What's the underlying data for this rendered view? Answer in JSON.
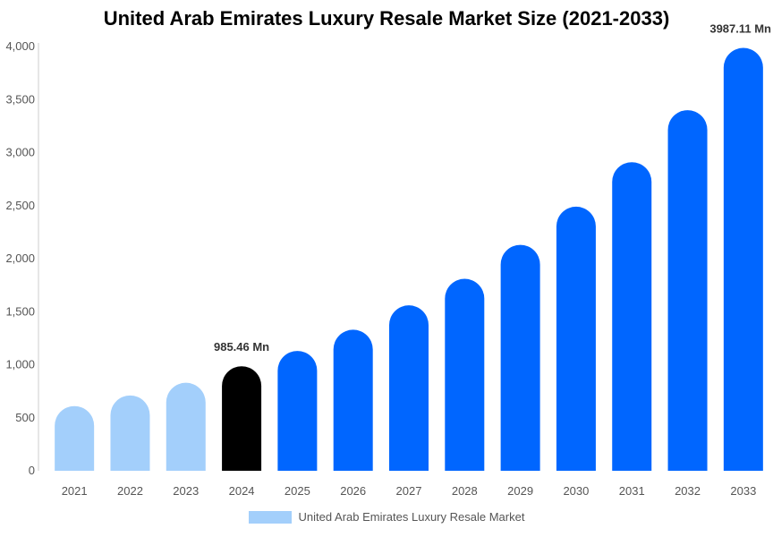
{
  "chart_data": {
    "type": "bar",
    "title": "United Arab Emirates Luxury Resale Market Size (2021-2033)",
    "xlabel": "",
    "ylabel": "",
    "categories": [
      "2021",
      "2022",
      "2023",
      "2024",
      "2025",
      "2026",
      "2027",
      "2028",
      "2029",
      "2030",
      "2031",
      "2032",
      "2033"
    ],
    "series": [
      {
        "name": "United Arab Emirates Luxury Resale Market",
        "values": [
          610,
          710,
          830,
          985.46,
          1130,
          1330,
          1560,
          1810,
          2130,
          2490,
          2910,
          3400,
          3987.11
        ]
      }
    ],
    "ylim": [
      0,
      4000
    ],
    "yticks": [
      0,
      500,
      1000,
      1500,
      2000,
      2500,
      3000,
      3500,
      4000
    ],
    "ytick_labels": [
      "0",
      "500",
      "1,000",
      "1,500",
      "2,000",
      "2,500",
      "3,000",
      "3,500",
      "4,000"
    ],
    "grid": false,
    "legend_position": "bottom",
    "data_labels": [
      {
        "category": "2024",
        "text": "985.46 Mn"
      },
      {
        "category": "2033",
        "text": "3987.11 Mn"
      }
    ],
    "colors": {
      "historical": "#a3cffb",
      "base_year": "#000000",
      "forecast": "#0066ff",
      "legend": "#a3cffb"
    }
  }
}
